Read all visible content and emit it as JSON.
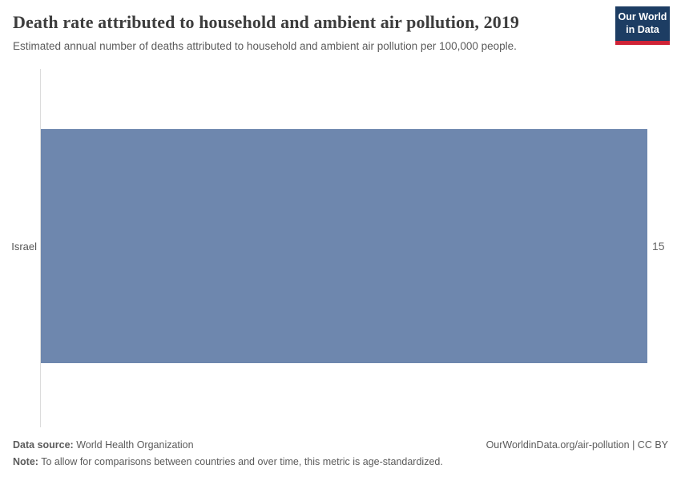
{
  "header": {
    "title": "Death rate attributed to household and ambient air pollution, 2019",
    "subtitle": "Estimated annual number of deaths attributed to household and ambient air pollution per 100,000 people."
  },
  "logo": {
    "line1": "Our World",
    "line2": "in Data",
    "bg_color": "#1d3d63",
    "accent_color": "#cf2336"
  },
  "chart_data": {
    "type": "bar",
    "orientation": "horizontal",
    "title": "Death rate attributed to household and ambient air pollution, 2019",
    "categories": [
      "Israel"
    ],
    "values": [
      15
    ],
    "value_labels": [
      "15"
    ],
    "xlabel": "",
    "ylabel": "",
    "xlim": [
      0,
      15
    ],
    "grid": false,
    "legend": false,
    "bar_color": "#6e87ae",
    "axis_line_color": "#dcdcdc"
  },
  "footer": {
    "datasource_label": "Data source:",
    "datasource_value": "World Health Organization",
    "note_label": "Note:",
    "note_value": "To allow for comparisons between countries and over time, this metric is age-standardized.",
    "attribution": "OurWorldinData.org/air-pollution | CC BY"
  }
}
